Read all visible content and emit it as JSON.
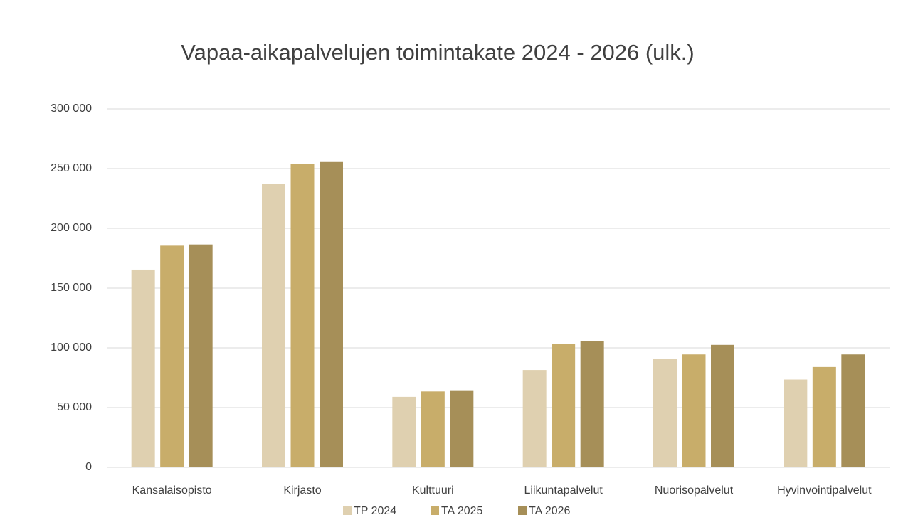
{
  "chart_data": {
    "type": "bar",
    "title": "Vapaa-aikapalvelujen toimintakate 2024 - 2026 (ulk.)",
    "categories": [
      "Kansalaisopisto",
      "Kirjasto",
      "Kulttuuri",
      "Liikuntapalvelut",
      "Nuorisopalvelut",
      "Hyvinvointipalvelut"
    ],
    "series": [
      {
        "name": "TP 2024",
        "color": "#dfd0b0",
        "values": [
          165500,
          237500,
          59000,
          81500,
          90500,
          73500
        ]
      },
      {
        "name": "TA 2025",
        "color": "#c8ad6a",
        "values": [
          185500,
          254000,
          63500,
          103500,
          94500,
          84000
        ]
      },
      {
        "name": "TA 2026",
        "color": "#a68f58",
        "values": [
          186500,
          255500,
          64500,
          105500,
          102500,
          94500
        ]
      }
    ],
    "ylim": [
      0,
      300000
    ],
    "yticks": [
      {
        "value": 0,
        "label": "0"
      },
      {
        "value": 50000,
        "label": "50 000"
      },
      {
        "value": 100000,
        "label": "100 000"
      },
      {
        "value": 150000,
        "label": "150 000"
      },
      {
        "value": 200000,
        "label": "200 000"
      },
      {
        "value": 250000,
        "label": "250 000"
      },
      {
        "value": 300000,
        "label": "300 000"
      }
    ],
    "grid": true,
    "legend": "bottom"
  }
}
